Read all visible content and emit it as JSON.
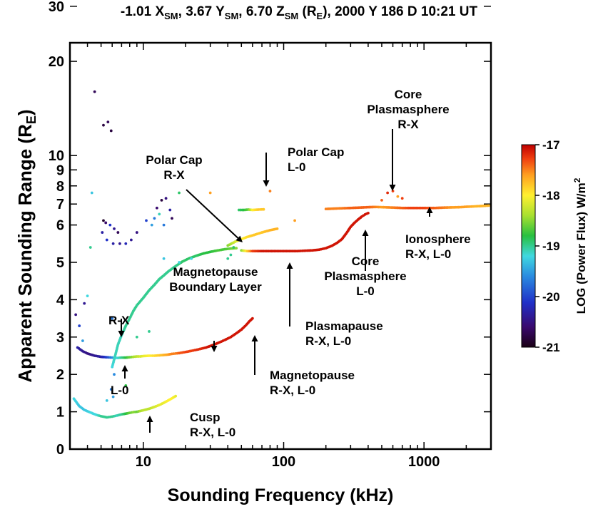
{
  "chart_data": {
    "type": "scatter",
    "title_parts": {
      "lead": "-1.01 X",
      "sub1": "SM",
      "mid1": ", 3.67 Y",
      "sub2": "SM",
      "mid2": ", 6.70 Z",
      "sub3": "SM",
      "mid3": " (R",
      "sub4": "E",
      "tail": "), 2000 Y 186 D 10:21 UT"
    },
    "xlabel": "Sounding Frequency (kHz)",
    "ylabel_lead": "Apparent Sounding Range (R",
    "ylabel_sub": "E",
    "ylabel_tail": ")",
    "x_scale": "log",
    "xlim": [
      3,
      3000
    ],
    "x_ticks": [
      10,
      100,
      1000
    ],
    "x_tick_labels": [
      "10",
      "100",
      "1000"
    ],
    "y_scale": "piecewise: linear 0-6, log 6-30",
    "ylim": [
      0,
      30
    ],
    "y_ticks": [
      0,
      1,
      2,
      3,
      4,
      5,
      6,
      7,
      8,
      9,
      10,
      20,
      30
    ],
    "y_tick_labels": [
      "0",
      "1",
      "2",
      "3",
      "4",
      "5",
      "6",
      "7",
      "8",
      "9",
      "10",
      "20",
      "30"
    ],
    "colorbar": {
      "label_lead": "LOG (Power Flux) W/m",
      "label_sup": "2",
      "range": [
        -21,
        -17
      ],
      "ticks": [
        -17,
        -18,
        -19,
        -20,
        -21
      ],
      "tick_labels": [
        "-17",
        "-18",
        "-19",
        "-20",
        "-21"
      ]
    },
    "annotations": [
      {
        "label": [
          "Core",
          "Plasmasphere",
          "R-X"
        ]
      },
      {
        "label": [
          "Polar Cap",
          "L-0"
        ]
      },
      {
        "label": [
          "Polar Cap",
          "R-X"
        ]
      },
      {
        "label": [
          "Ionosphere",
          "R-X, L-0"
        ]
      },
      {
        "label": [
          "Core",
          "Plasmasphere",
          "L-0"
        ]
      },
      {
        "label": [
          "R-X"
        ]
      },
      {
        "label": [
          "Magnetopause",
          "Boundary Layer"
        ]
      },
      {
        "label": [
          "Plasmapause",
          "R-X, L-0"
        ]
      },
      {
        "label": [
          "L-0"
        ]
      },
      {
        "label": [
          "Magnetopause",
          "R-X, L-0"
        ]
      },
      {
        "label": [
          "Cusp",
          "R-X, L-0"
        ]
      }
    ],
    "series": [
      {
        "id": "low-trace",
        "points": [
          [
            3.2,
            1.35
          ],
          [
            3.5,
            1.15
          ],
          [
            3.8,
            1.05
          ],
          [
            4.2,
            0.98
          ],
          [
            4.6,
            0.92
          ],
          [
            5,
            0.88
          ],
          [
            5.5,
            0.85
          ],
          [
            6,
            0.87
          ],
          [
            6.5,
            0.9
          ],
          [
            7,
            0.93
          ],
          [
            7.5,
            0.95
          ],
          [
            8,
            0.97
          ],
          [
            8.5,
            0.99
          ],
          [
            9,
            1.0
          ],
          [
            9.5,
            1.02
          ],
          [
            10,
            1.04
          ],
          [
            11,
            1.08
          ],
          [
            12,
            1.13
          ],
          [
            13,
            1.18
          ],
          [
            14,
            1.24
          ],
          [
            15,
            1.3
          ],
          [
            16,
            1.36
          ],
          [
            17,
            1.42
          ]
        ],
        "p": [
          -19.2,
          -19.3,
          -19.3,
          -19.2,
          -19.2,
          -19.0,
          -19.0,
          -19.0,
          -19.1,
          -19.0,
          -18.8,
          -18.6,
          -18.5,
          -18.6,
          -18.4,
          -18.3,
          -18.3,
          -18.2,
          -18.1,
          -18.1,
          -18.0,
          -18.0,
          -18.1
        ]
      },
      {
        "id": "boundary-trace",
        "points": [
          [
            3.4,
            2.72
          ],
          [
            3.7,
            2.62
          ],
          [
            4,
            2.56
          ],
          [
            4.5,
            2.5
          ],
          [
            5,
            2.47
          ],
          [
            5.5,
            2.46
          ],
          [
            6,
            2.45
          ],
          [
            6.5,
            2.44
          ],
          [
            7,
            2.45
          ],
          [
            7.5,
            2.45
          ],
          [
            8,
            2.46
          ],
          [
            8.5,
            2.47
          ],
          [
            9,
            2.48
          ],
          [
            9.5,
            2.48
          ],
          [
            10,
            2.49
          ],
          [
            11,
            2.5
          ],
          [
            12,
            2.5
          ],
          [
            13,
            2.51
          ],
          [
            14,
            2.52
          ],
          [
            15,
            2.53
          ],
          [
            16,
            2.55
          ],
          [
            17,
            2.56
          ],
          [
            18,
            2.57
          ],
          [
            20,
            2.6
          ],
          [
            22,
            2.63
          ],
          [
            24,
            2.66
          ],
          [
            26,
            2.69
          ],
          [
            28,
            2.72
          ],
          [
            30,
            2.76
          ],
          [
            32,
            2.8
          ],
          [
            35,
            2.86
          ],
          [
            38,
            2.92
          ],
          [
            42,
            3.0
          ],
          [
            46,
            3.1
          ],
          [
            50,
            3.2
          ],
          [
            54,
            3.32
          ],
          [
            57,
            3.42
          ],
          [
            60,
            3.5
          ]
        ],
        "p": [
          -20.3,
          -20.4,
          -20.5,
          -20.4,
          -20.3,
          -20.0,
          -19.6,
          -19.2,
          -19.0,
          -18.8,
          -18.6,
          -18.4,
          -18.3,
          -18.2,
          -18.1,
          -18.0,
          -17.9,
          -17.8,
          -17.7,
          -17.6,
          -17.5,
          -17.5,
          -17.4,
          -17.3,
          -17.3,
          -17.2,
          -17.2,
          -17.1,
          -17.1,
          -17.1,
          -17.1,
          -17.1,
          -17.1,
          -17.1,
          -17.1,
          -17.1,
          -17.1,
          -17.1
        ]
      },
      {
        "id": "rising-trace",
        "points": [
          [
            6,
            2.2
          ],
          [
            6.3,
            2.5
          ],
          [
            6.6,
            2.8
          ],
          [
            7,
            3.05
          ],
          [
            7.5,
            3.3
          ],
          [
            8,
            3.5
          ],
          [
            8.5,
            3.7
          ],
          [
            9,
            3.85
          ],
          [
            10,
            4.05
          ],
          [
            11,
            4.25
          ],
          [
            12,
            4.4
          ],
          [
            13,
            4.55
          ],
          [
            14,
            4.65
          ],
          [
            15,
            4.75
          ],
          [
            17,
            4.9
          ],
          [
            19,
            5.02
          ],
          [
            21,
            5.1
          ],
          [
            24,
            5.18
          ],
          [
            27,
            5.24
          ],
          [
            30,
            5.28
          ],
          [
            34,
            5.32
          ],
          [
            38,
            5.35
          ],
          [
            42,
            5.37
          ],
          [
            46,
            5.38
          ]
        ],
        "p": [
          -19.2,
          -19.1,
          -19.1,
          -19.1,
          -19.0,
          -19.0,
          -19.0,
          -19.0,
          -19.0,
          -19.0,
          -19.0,
          -19.0,
          -19.0,
          -19.0,
          -19.0,
          -18.9,
          -18.9,
          -18.9,
          -18.8,
          -18.8,
          -18.7,
          -18.7,
          -18.6,
          -18.5
        ]
      },
      {
        "id": "plasmapause-trace",
        "points": [
          [
            50,
            5.32
          ],
          [
            55,
            5.3
          ],
          [
            60,
            5.3
          ],
          [
            70,
            5.3
          ],
          [
            80,
            5.3
          ],
          [
            90,
            5.3
          ],
          [
            100,
            5.3
          ],
          [
            110,
            5.3
          ],
          [
            125,
            5.3
          ],
          [
            140,
            5.31
          ],
          [
            160,
            5.32
          ],
          [
            180,
            5.34
          ],
          [
            200,
            5.38
          ],
          [
            220,
            5.44
          ],
          [
            240,
            5.52
          ],
          [
            260,
            5.62
          ],
          [
            280,
            5.78
          ],
          [
            300,
            5.95
          ],
          [
            320,
            6.1
          ],
          [
            340,
            6.25
          ],
          [
            360,
            6.38
          ],
          [
            380,
            6.48
          ],
          [
            400,
            6.55
          ]
        ],
        "p": [
          -18.5,
          -17.8,
          -17.3,
          -17.1,
          -17.1,
          -17.1,
          -17.1,
          -17.1,
          -17.1,
          -17.1,
          -17.1,
          -17.1,
          -17.1,
          -17.1,
          -17.1,
          -17.1,
          -17.1,
          -17.1,
          -17.1,
          -17.1,
          -17.1,
          -17.1,
          -17.1
        ]
      },
      {
        "id": "polarcap-rx-trace",
        "points": [
          [
            40,
            5.45
          ],
          [
            45,
            5.55
          ],
          [
            50,
            5.62
          ],
          [
            55,
            5.68
          ],
          [
            60,
            5.72
          ],
          [
            70,
            5.8
          ],
          [
            80,
            5.86
          ],
          [
            90,
            5.9
          ]
        ],
        "p": [
          -18.5,
          -18.2,
          -18.0,
          -17.9,
          -17.8,
          -17.8,
          -17.7,
          -17.7
        ]
      },
      {
        "id": "ionosphere-trace",
        "points": [
          [
            200,
            6.75
          ],
          [
            250,
            6.78
          ],
          [
            300,
            6.8
          ],
          [
            350,
            6.82
          ],
          [
            400,
            6.84
          ],
          [
            450,
            6.85
          ],
          [
            500,
            6.84
          ],
          [
            600,
            6.82
          ],
          [
            700,
            6.8
          ],
          [
            800,
            6.8
          ],
          [
            900,
            6.8
          ],
          [
            1000,
            6.8
          ],
          [
            1200,
            6.8
          ],
          [
            1400,
            6.82
          ],
          [
            1600,
            6.83
          ],
          [
            1800,
            6.84
          ],
          [
            2000,
            6.86
          ],
          [
            2300,
            6.88
          ],
          [
            2600,
            6.9
          ],
          [
            2900,
            6.92
          ]
        ],
        "p": [
          -17.5,
          -17.5,
          -17.4,
          -17.4,
          -17.4,
          -17.5,
          -17.6,
          -17.5,
          -17.4,
          -17.3,
          -17.3,
          -17.3,
          -17.4,
          -17.5,
          -17.6,
          -17.6,
          -17.6,
          -17.7,
          -17.7,
          -17.7
        ]
      },
      {
        "id": "polarcap-l0-trace",
        "points": [
          [
            48,
            6.7
          ],
          [
            52,
            6.7
          ],
          [
            56,
            6.72
          ],
          [
            60,
            6.7
          ],
          [
            66,
            6.72
          ],
          [
            72,
            6.73
          ]
        ],
        "p": [
          -18.9,
          -18.8,
          -18.6,
          -18.0,
          -17.8,
          -17.8
        ]
      },
      {
        "id": "scatter-points",
        "points": [
          [
            4.5,
            16
          ],
          [
            5.2,
            12.5
          ],
          [
            5.6,
            12.8
          ],
          [
            5.9,
            12
          ],
          [
            4.3,
            7.6
          ],
          [
            3.3,
            3.6
          ],
          [
            3.7,
            2.9
          ],
          [
            4,
            4.1
          ],
          [
            5.2,
            6.2
          ],
          [
            5.4,
            6.1
          ],
          [
            5.8,
            6.0
          ],
          [
            6.2,
            5.9
          ],
          [
            6.6,
            5.8
          ],
          [
            5.1,
            5.8
          ],
          [
            5.5,
            5.6
          ],
          [
            6.1,
            5.5
          ],
          [
            6.8,
            5.5
          ],
          [
            7.5,
            5.5
          ],
          [
            8.2,
            5.6
          ],
          [
            9,
            5.8
          ],
          [
            10.5,
            6.2
          ],
          [
            11.5,
            6.0
          ],
          [
            12,
            6.3
          ],
          [
            13,
            6.5
          ],
          [
            12.5,
            6.8
          ],
          [
            13.5,
            7.2
          ],
          [
            14.5,
            7.3
          ],
          [
            15.5,
            6.7
          ],
          [
            16,
            6.3
          ],
          [
            14,
            6.0
          ],
          [
            18,
            7.6
          ],
          [
            30,
            7.6
          ],
          [
            40,
            5.1
          ],
          [
            42,
            5.2
          ],
          [
            44,
            5.4
          ],
          [
            80,
            7.7
          ],
          [
            120,
            6.2
          ],
          [
            500,
            7.2
          ],
          [
            600,
            7.7
          ],
          [
            650,
            7.4
          ],
          [
            700,
            7.3
          ],
          [
            550,
            7.6
          ],
          [
            3.5,
            3.3
          ],
          [
            3.8,
            3.9
          ],
          [
            6,
            3.5
          ],
          [
            6.2,
            2.0
          ],
          [
            5.9,
            1.6
          ],
          [
            6.1,
            1.4
          ],
          [
            5.5,
            1.3
          ],
          [
            7.5,
            1.7
          ],
          [
            14,
            5.1
          ],
          [
            18,
            5.0
          ],
          [
            22,
            5.1
          ],
          [
            9,
            3.0
          ],
          [
            11,
            3.15
          ],
          [
            4.2,
            5.4
          ]
        ],
        "p": [
          -20.7,
          -20.8,
          -20.7,
          -20.8,
          -19.3,
          -20.5,
          -19.5,
          -19.2,
          -20.9,
          -20.6,
          -20.1,
          -20.4,
          -20.7,
          -20.3,
          -20.1,
          -20.3,
          -20.4,
          -20.2,
          -20.4,
          -20.5,
          -20.0,
          -19.5,
          -19.7,
          -19.1,
          -20.6,
          -20.8,
          -20.5,
          -20.3,
          -20.7,
          -19.7,
          -18.9,
          -17.6,
          -19.0,
          -19.0,
          -18.9,
          -17.5,
          -17.6,
          -17.4,
          -17.3,
          -17.6,
          -17.3,
          -17.2,
          -20.0,
          -20.4,
          -19.7,
          -19.6,
          -19.7,
          -19.5,
          -19.3,
          -18.8,
          -19.3,
          -19.2,
          -19.2,
          -19.0,
          -19.0,
          -19.0
        ]
      }
    ]
  }
}
